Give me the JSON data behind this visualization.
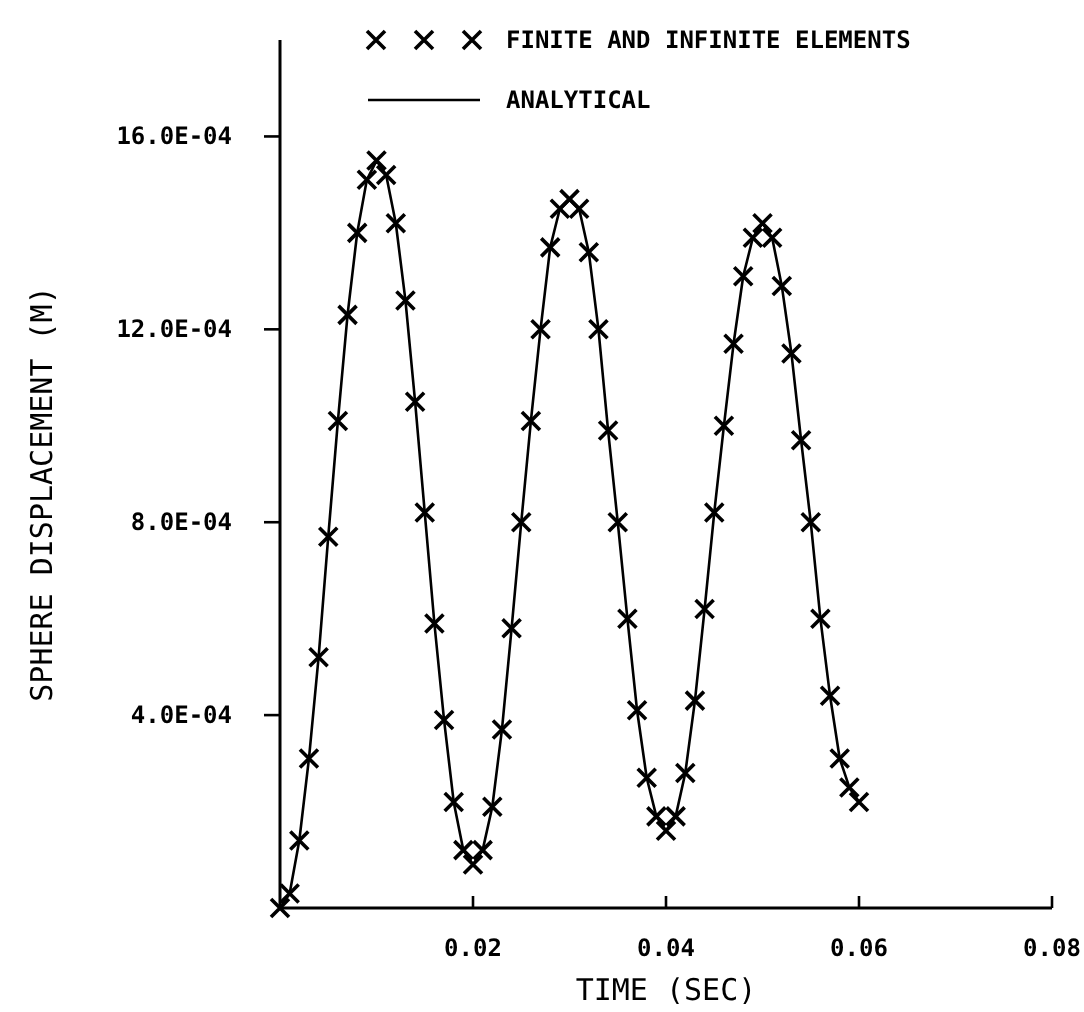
{
  "chart_data": {
    "type": "line",
    "xlabel": "TIME (SEC)",
    "ylabel": "SPHERE DISPLACEMENT (M)",
    "x": [
      0,
      0.001,
      0.002,
      0.003,
      0.004,
      0.005,
      0.006,
      0.007,
      0.008,
      0.009,
      0.01,
      0.011,
      0.012,
      0.013,
      0.014,
      0.015,
      0.016,
      0.017,
      0.018,
      0.019,
      0.02,
      0.021,
      0.022,
      0.023,
      0.024,
      0.025,
      0.026,
      0.027,
      0.028,
      0.029,
      0.03,
      0.031,
      0.032,
      0.033,
      0.034,
      0.035,
      0.036,
      0.037,
      0.038,
      0.039,
      0.04,
      0.041,
      0.042,
      0.043,
      0.044,
      0.045,
      0.046,
      0.047,
      0.048,
      0.049,
      0.05,
      0.051,
      0.052,
      0.053,
      0.054,
      0.055,
      0.056,
      0.057,
      0.058,
      0.059,
      0.06
    ],
    "series": [
      {
        "name": "FINITE AND INFINITE ELEMENTS",
        "type": "scatter",
        "marker": "cross",
        "color": "#000000",
        "values": [
          0,
          3e-05,
          0.00014,
          0.00031,
          0.00052,
          0.00077,
          0.00101,
          0.00123,
          0.0014,
          0.00151,
          0.00155,
          0.00152,
          0.00142,
          0.00126,
          0.00105,
          0.00082,
          0.00059,
          0.00039,
          0.00022,
          0.00012,
          9e-05,
          0.00012,
          0.00021,
          0.00037,
          0.00058,
          0.0008,
          0.00101,
          0.0012,
          0.00137,
          0.00145,
          0.00147,
          0.00145,
          0.00136,
          0.0012,
          0.00099,
          0.0008,
          0.0006,
          0.00041,
          0.00027,
          0.00019,
          0.00016,
          0.00019,
          0.00028,
          0.00043,
          0.00062,
          0.00082,
          0.001,
          0.00117,
          0.00131,
          0.00139,
          0.00142,
          0.00139,
          0.00129,
          0.00115,
          0.00097,
          0.0008,
          0.0006,
          0.00044,
          0.00031,
          0.00025,
          0.00022
        ]
      },
      {
        "name": "ANALYTICAL",
        "marker": "none",
        "line_style": "solid",
        "color": "#000000",
        "values": [
          0,
          3e-05,
          0.00014,
          0.00031,
          0.00052,
          0.00077,
          0.00101,
          0.00123,
          0.0014,
          0.00151,
          0.00155,
          0.00152,
          0.00142,
          0.00126,
          0.00105,
          0.00082,
          0.00059,
          0.00039,
          0.00022,
          0.00012,
          9e-05,
          0.00012,
          0.00021,
          0.00037,
          0.00058,
          0.0008,
          0.00101,
          0.0012,
          0.00137,
          0.00145,
          0.00147,
          0.00145,
          0.00136,
          0.0012,
          0.00099,
          0.0008,
          0.0006,
          0.00041,
          0.00027,
          0.00019,
          0.00016,
          0.00019,
          0.00028,
          0.00043,
          0.00062,
          0.00082,
          0.001,
          0.00117,
          0.00131,
          0.00139,
          0.00142,
          0.00139,
          0.00129,
          0.00115,
          0.00097,
          0.0008,
          0.0006,
          0.00044,
          0.00031,
          0.00025,
          0.00022
        ]
      }
    ],
    "xlim": [
      0,
      0.08
    ],
    "xticks": [
      0.02,
      0.04,
      0.06,
      0.08
    ],
    "ylim": [
      0,
      0.0018
    ],
    "yticks": [
      {
        "value": 0.0004,
        "label": "4.0E-04"
      },
      {
        "value": 0.0008,
        "label": "8.0E-04"
      },
      {
        "value": 0.0012,
        "label": "12.0E-04"
      },
      {
        "value": 0.0016,
        "label": "16.0E-04"
      }
    ],
    "grid": false,
    "legend": "top right"
  }
}
